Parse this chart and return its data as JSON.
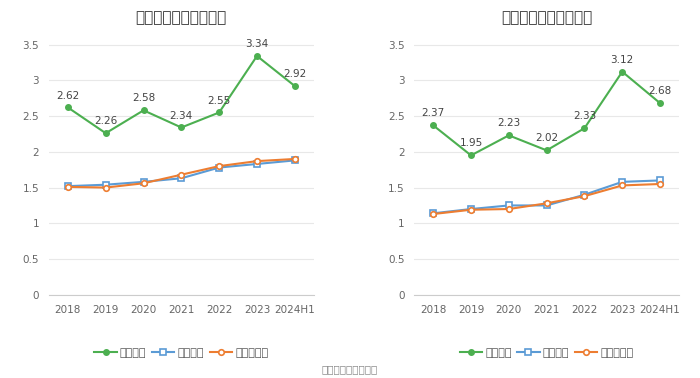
{
  "left": {
    "title": "历年流动比率变化情况",
    "xticklabels": [
      "2018",
      "2019",
      "2020",
      "2021",
      "2022",
      "2023",
      "2024H1"
    ],
    "series1": {
      "label": "流动比率",
      "values": [
        2.62,
        2.26,
        2.58,
        2.34,
        2.55,
        3.34,
        2.92
      ],
      "color": "#4caf50",
      "marker": "o"
    },
    "series2": {
      "label": "行业均值",
      "values": [
        1.52,
        1.54,
        1.58,
        1.63,
        1.78,
        1.83,
        1.88
      ],
      "color": "#5b9bd5",
      "marker": "s"
    },
    "series3": {
      "label": "行业中位数",
      "values": [
        1.51,
        1.5,
        1.56,
        1.68,
        1.8,
        1.87,
        1.9
      ],
      "color": "#ed7d31",
      "marker": "o"
    },
    "ylim": [
      0,
      3.7
    ],
    "yticks": [
      0,
      0.5,
      1,
      1.5,
      2,
      2.5,
      3,
      3.5
    ]
  },
  "right": {
    "title": "历年速动比率变化情况",
    "xticklabels": [
      "2018",
      "2019",
      "2020",
      "2021",
      "2022",
      "2023",
      "2024H1"
    ],
    "series1": {
      "label": "速动比率",
      "values": [
        2.37,
        1.95,
        2.23,
        2.02,
        2.33,
        3.12,
        2.68
      ],
      "color": "#4caf50",
      "marker": "o"
    },
    "series2": {
      "label": "行业均值",
      "values": [
        1.14,
        1.2,
        1.25,
        1.25,
        1.4,
        1.58,
        1.6
      ],
      "color": "#5b9bd5",
      "marker": "s"
    },
    "series3": {
      "label": "行业中位数",
      "values": [
        1.13,
        1.19,
        1.2,
        1.28,
        1.38,
        1.53,
        1.55
      ],
      "color": "#ed7d31",
      "marker": "o"
    },
    "ylim": [
      0,
      3.7
    ],
    "yticks": [
      0,
      0.5,
      1,
      1.5,
      2,
      2.5,
      3,
      3.5
    ]
  },
  "footer": "数据来源：恒生聚源",
  "bg_color": "#ffffff",
  "grid_color": "#e8e8e8",
  "title_fontsize": 11,
  "annotation_fontsize": 7.5,
  "tick_fontsize": 7.5,
  "legend_fontsize": 8
}
